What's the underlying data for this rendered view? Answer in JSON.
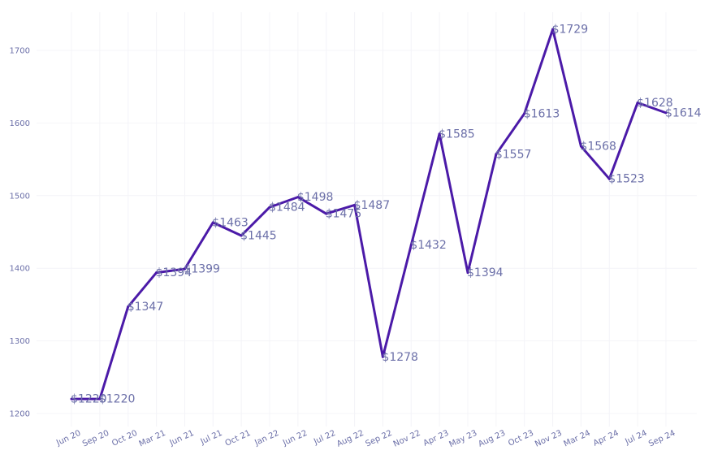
{
  "chart_data": {
    "type": "line",
    "title": "",
    "xlabel": "",
    "ylabel": "",
    "categories": [
      "Jun 20",
      "Sep 20",
      "Oct 20",
      "Mar 21",
      "Jun 21",
      "Jul 21",
      "Oct 21",
      "Jan 22",
      "Jun 22",
      "Jul 22",
      "Aug 22",
      "Sep 22",
      "Nov 22",
      "Apr 23",
      "May 23",
      "Aug 23",
      "Oct 23",
      "Nov 23",
      "Mar 24",
      "Apr 24",
      "Jul 24",
      "Sep 24"
    ],
    "series": [
      {
        "values": [
          1220,
          1220,
          1347,
          1394,
          1399,
          1463,
          1445,
          1484,
          1498,
          1475,
          1487,
          1278,
          1432,
          1585,
          1394,
          1557,
          1613,
          1729,
          1568,
          1523,
          1628,
          1614
        ],
        "labels": [
          "$1220",
          "$1220",
          "$1347",
          "$1394",
          "$1399",
          "$1463",
          "$1445",
          "$1484",
          "$1498",
          "$1475",
          "$1487",
          "$1278",
          "$1432",
          "$1585",
          "$1394",
          "$1557",
          "$1613",
          "$1729",
          "$1568",
          "$1523",
          "$1628",
          "$1614"
        ]
      }
    ],
    "yticks": [
      1200,
      1300,
      1400,
      1500,
      1600,
      1700
    ],
    "ylim": [
      1200,
      1750
    ],
    "grid": true,
    "legend": "none",
    "line_color": "#4b1aa8",
    "label_color": "#6b6fa8"
  }
}
